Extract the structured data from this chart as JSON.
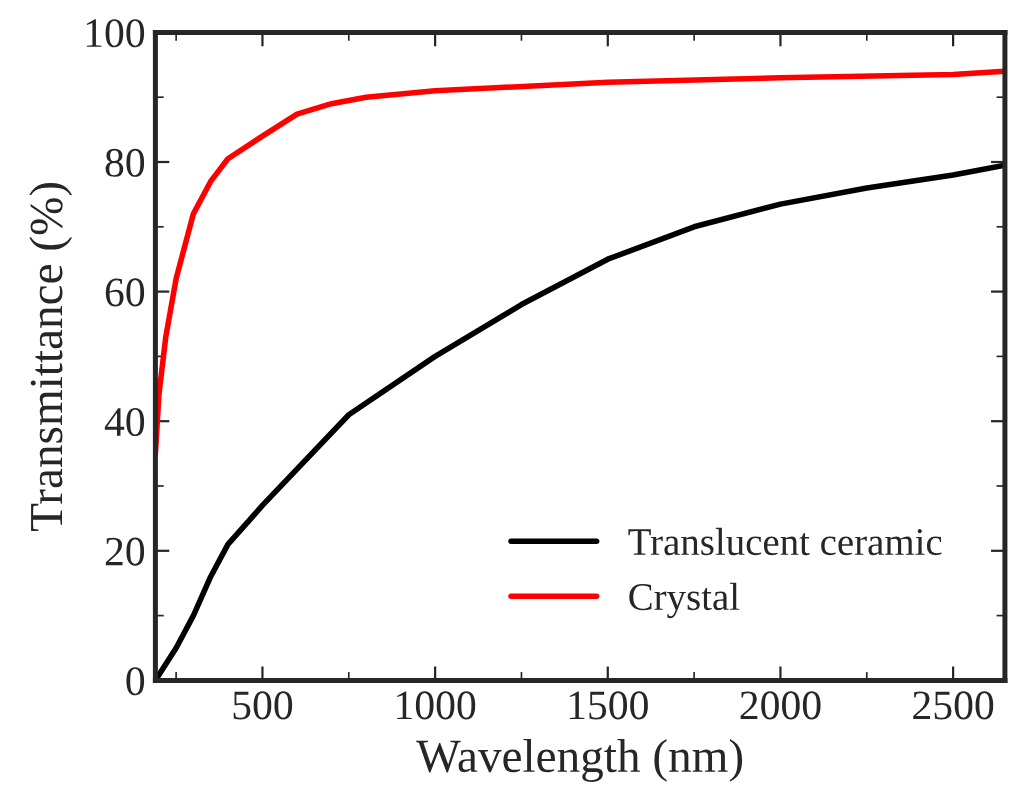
{
  "chart_data": {
    "type": "line",
    "xlabel": "Wavelength (nm)",
    "ylabel": "Transmittance (%)",
    "xlim": [
      190,
      2650
    ],
    "xticks": [
      500,
      1000,
      1500,
      2000,
      2500
    ],
    "ylim": [
      0,
      100
    ],
    "yticks": [
      0,
      20,
      40,
      60,
      80,
      100
    ],
    "grid": false,
    "legend": "bottom right",
    "line_style": "solid",
    "marker": "none",
    "series": [
      {
        "name": "Translucent ceramic",
        "color": "#000000",
        "x": [
          190,
          250,
          300,
          350,
          400,
          500,
          750,
          1000,
          1250,
          1500,
          1750,
          2000,
          2250,
          2500,
          2650
        ],
        "values": [
          0,
          5,
          10,
          16,
          21,
          27,
          41,
          50,
          58,
          65,
          70,
          73.5,
          76,
          78,
          79.5
        ]
      },
      {
        "name": "Crystal",
        "color": "#ff0000",
        "x": [
          190,
          200,
          220,
          250,
          300,
          350,
          400,
          500,
          600,
          700,
          800,
          1000,
          1500,
          2000,
          2500,
          2650
        ],
        "values": [
          35,
          44,
          53,
          62,
          72,
          77,
          80.5,
          84,
          87.4,
          89,
          90,
          91,
          92.3,
          93,
          93.5,
          94
        ]
      }
    ]
  }
}
